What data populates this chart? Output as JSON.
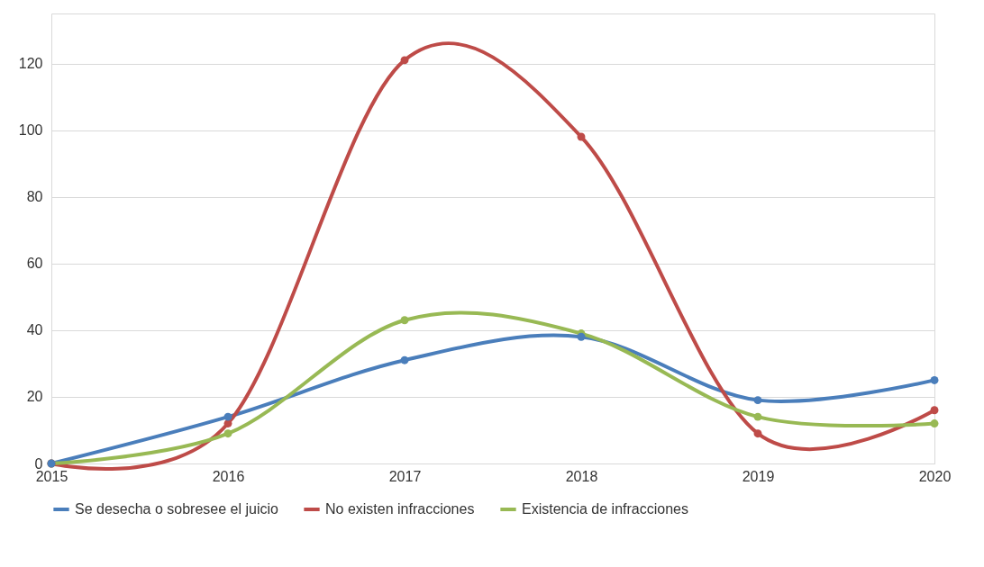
{
  "chart_data": {
    "type": "line",
    "categories": [
      "2015",
      "2016",
      "2017",
      "2018",
      "2019",
      "2020"
    ],
    "series": [
      {
        "name": "Se desecha o sobresee el juicio",
        "color": "#4a7ebb",
        "values": [
          0,
          14,
          31,
          38,
          19,
          25
        ]
      },
      {
        "name": "No existen infracciones",
        "color": "#be4b48",
        "values": [
          0,
          12,
          121,
          98,
          9,
          16
        ]
      },
      {
        "name": "Existencia de infracciones",
        "color": "#98b954",
        "values": [
          0,
          9,
          43,
          39,
          14,
          12
        ]
      }
    ],
    "ylim": [
      0,
      135
    ],
    "yticks": [
      0,
      20,
      40,
      60,
      80,
      100,
      120
    ],
    "grid": "y",
    "legend": "bottom",
    "marker": "circle",
    "line_style": "solid"
  }
}
